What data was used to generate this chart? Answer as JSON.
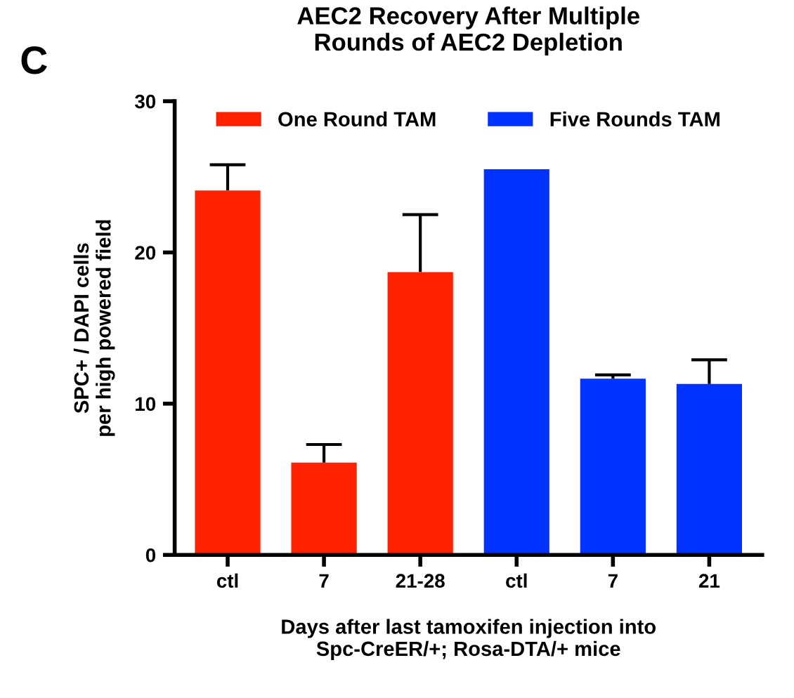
{
  "chart_data": {
    "type": "bar",
    "title": "AEC2 Recovery After Multiple\nRounds of AEC2 Depletion",
    "xlabel": "Days after last tamoxifen injection into\nSpc-CreER/+; Rosa-DTA/+ mice",
    "ylabel": "SPC+ / DAPI cells\nper high powered field",
    "categories": [
      "ctl",
      "7",
      "21-28",
      "ctl",
      "7",
      "21"
    ],
    "series": [
      {
        "name": "One Round TAM",
        "color": "#ff2200",
        "values": [
          24.1,
          6.1,
          18.7,
          null,
          null,
          null
        ],
        "errors": [
          [
            24.1,
            25.8
          ],
          [
            6.1,
            7.3
          ],
          [
            18.7,
            22.5
          ],
          null,
          null,
          null
        ]
      },
      {
        "name": "Five Rounds TAM",
        "color": "#0033ff",
        "values": [
          null,
          null,
          null,
          25.5,
          11.65,
          11.3
        ],
        "errors": [
          null,
          null,
          null,
          null,
          [
            11.65,
            11.9
          ],
          [
            11.3,
            12.9
          ]
        ]
      }
    ],
    "ylim": [
      0,
      30
    ],
    "yticks": [
      0,
      10,
      20,
      30
    ],
    "grid": false,
    "legend": "top",
    "annotations": [
      "C"
    ]
  }
}
